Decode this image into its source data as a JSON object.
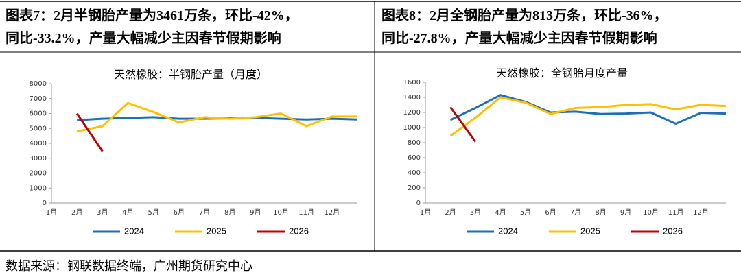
{
  "captions": [
    [
      "图表7：2月半钢胎产量为3461万条，环比-42%，",
      "同比-33.2%，产量大幅减少主因春节假期影响"
    ],
    [
      "图表8：2月全钢胎产量为813万条，环比-36%，",
      "同比-27.8%，产量大幅减少主因春节假期影响"
    ]
  ],
  "chart_data": [
    {
      "type": "line",
      "title": "天然橡胶：半钢胎产量（月度）",
      "categories": [
        "1月",
        "2月",
        "3月",
        "4月",
        "5月",
        "6月",
        "7月",
        "8月",
        "9月",
        "10月",
        "11月",
        "12月",
        null
      ],
      "series": [
        {
          "name": "2024",
          "color": "#1f6fb8",
          "values": [
            null,
            5550,
            5650,
            5700,
            5750,
            5650,
            5650,
            5680,
            5700,
            5650,
            5600,
            5650,
            5600
          ]
        },
        {
          "name": "2025",
          "color": "#ffc000",
          "values": [
            null,
            4800,
            5150,
            6700,
            6100,
            5400,
            5750,
            5650,
            5750,
            6000,
            5150,
            5800,
            5800
          ]
        },
        {
          "name": "2026",
          "color": "#c00000",
          "values": [
            null,
            6000,
            3461,
            null,
            null,
            null,
            null,
            null,
            null,
            null,
            null,
            null,
            null
          ]
        }
      ],
      "ylim": [
        0,
        8000
      ],
      "yticks": [
        0,
        1000,
        2000,
        3000,
        4000,
        5000,
        6000,
        7000,
        8000
      ],
      "legend": "bottom"
    },
    {
      "type": "line",
      "title": "天然橡胶：全钢胎月度产量",
      "categories": [
        "1月",
        "2月",
        "3月",
        "4月",
        "5月",
        "6月",
        "7月",
        "8月",
        "9月",
        "10月",
        "11月",
        "12月",
        null
      ],
      "series": [
        {
          "name": "2024",
          "color": "#1f6fb8",
          "values": [
            null,
            1100,
            1260,
            1430,
            1340,
            1200,
            1210,
            1180,
            1185,
            1200,
            1050,
            1195,
            1185
          ]
        },
        {
          "name": "2025",
          "color": "#ffc000",
          "values": [
            null,
            890,
            1130,
            1400,
            1330,
            1180,
            1260,
            1270,
            1300,
            1310,
            1240,
            1300,
            1285
          ]
        },
        {
          "name": "2026",
          "color": "#c00000",
          "values": [
            null,
            1270,
            813,
            null,
            null,
            null,
            null,
            null,
            null,
            null,
            null,
            null,
            null
          ]
        }
      ],
      "ylim": [
        0,
        1600
      ],
      "yticks": [
        0,
        200,
        400,
        600,
        800,
        1000,
        1200,
        1400,
        1600
      ],
      "legend": "bottom"
    }
  ],
  "source": "数据来源：钢联数据终端，广州期货研究中心"
}
